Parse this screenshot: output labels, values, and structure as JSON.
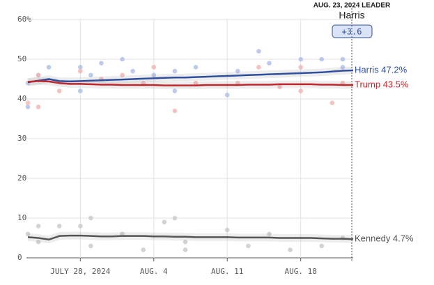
{
  "chart_data": {
    "type": "line",
    "leader": {
      "title": "AUG. 23, 2024 LEADER",
      "name": "Harris",
      "margin": "+3.6"
    },
    "x": [
      "2024-07-23",
      "2024-07-24",
      "2024-07-25",
      "2024-07-26",
      "2024-07-27",
      "2024-07-28",
      "2024-07-29",
      "2024-07-30",
      "2024-07-31",
      "2024-08-01",
      "2024-08-02",
      "2024-08-03",
      "2024-08-04",
      "2024-08-05",
      "2024-08-06",
      "2024-08-07",
      "2024-08-08",
      "2024-08-09",
      "2024-08-10",
      "2024-08-11",
      "2024-08-12",
      "2024-08-13",
      "2024-08-14",
      "2024-08-15",
      "2024-08-16",
      "2024-08-17",
      "2024-08-18",
      "2024-08-19",
      "2024-08-20",
      "2024-08-21",
      "2024-08-22",
      "2024-08-23"
    ],
    "xlim": [
      "2024-07-23",
      "2024-08-23"
    ],
    "xticks": [
      {
        "value": "2024-07-28",
        "label": "JULY 28, 2024"
      },
      {
        "value": "2024-08-04",
        "label": "AUG. 4"
      },
      {
        "value": "2024-08-11",
        "label": "AUG. 11"
      },
      {
        "value": "2024-08-18",
        "label": "AUG. 18"
      }
    ],
    "ylim": [
      0,
      60
    ],
    "yticks": [
      0,
      10,
      20,
      30,
      40,
      50,
      {
        "value": 60,
        "label": "60%"
      }
    ],
    "grid": true,
    "series": [
      {
        "name": "Harris",
        "end_label": "Harris 47.2%",
        "color": "#2f4f9e",
        "dot_color": "#aebde8",
        "values": [
          44.2,
          44.6,
          45.0,
          44.5,
          44.4,
          44.5,
          44.6,
          44.7,
          44.8,
          44.9,
          45.0,
          45.1,
          45.2,
          45.3,
          45.4,
          45.4,
          45.5,
          45.6,
          45.7,
          45.8,
          45.9,
          46.0,
          46.1,
          46.2,
          46.3,
          46.4,
          46.5,
          46.6,
          46.7,
          46.9,
          47.1,
          47.2
        ],
        "polls": {
          "x": [
            "2024-07-23",
            "2024-07-23",
            "2024-07-24",
            "2024-07-25",
            "2024-07-28",
            "2024-07-28",
            "2024-07-29",
            "2024-07-30",
            "2024-08-01",
            "2024-08-02",
            "2024-08-04",
            "2024-08-06",
            "2024-08-06",
            "2024-08-08",
            "2024-08-11",
            "2024-08-12",
            "2024-08-14",
            "2024-08-15",
            "2024-08-18",
            "2024-08-20",
            "2024-08-22",
            "2024-08-22"
          ],
          "values": [
            38,
            44,
            46,
            48,
            48,
            42,
            46,
            49,
            50,
            47,
            46,
            47,
            42,
            48,
            41,
            47,
            52,
            49,
            50,
            50,
            50,
            48
          ]
        }
      },
      {
        "name": "Trump",
        "end_label": "Trump 43.5%",
        "color": "#c0262d",
        "dot_color": "#f2b3b0",
        "values": [
          44.3,
          44.5,
          44.4,
          44.0,
          43.8,
          43.8,
          43.7,
          43.6,
          43.6,
          43.5,
          43.5,
          43.5,
          43.5,
          43.4,
          43.4,
          43.4,
          43.4,
          43.5,
          43.5,
          43.5,
          43.5,
          43.6,
          43.6,
          43.6,
          43.7,
          43.7,
          43.7,
          43.7,
          43.6,
          43.6,
          43.5,
          43.5
        ],
        "polls": {
          "x": [
            "2024-07-23",
            "2024-07-24",
            "2024-07-24",
            "2024-07-26",
            "2024-07-28",
            "2024-07-30",
            "2024-08-01",
            "2024-08-03",
            "2024-08-04",
            "2024-08-06",
            "2024-08-08",
            "2024-08-12",
            "2024-08-14",
            "2024-08-16",
            "2024-08-18",
            "2024-08-18",
            "2024-08-21",
            "2024-08-22"
          ],
          "values": [
            39,
            38,
            46,
            42,
            47,
            45,
            46,
            44,
            48,
            37,
            44,
            44,
            48,
            43,
            42,
            48,
            39,
            44
          ]
        }
      },
      {
        "name": "Kennedy",
        "end_label": "Kennedy 4.7%",
        "color": "#555555",
        "dot_color": "#c8c8c8",
        "values": [
          5.2,
          5.0,
          4.6,
          5.5,
          5.6,
          5.6,
          5.5,
          5.4,
          5.4,
          5.5,
          5.5,
          5.5,
          5.4,
          5.4,
          5.3,
          5.3,
          5.2,
          5.2,
          5.2,
          5.2,
          5.1,
          5.1,
          5.1,
          5.1,
          5.0,
          5.0,
          5.0,
          5.0,
          4.9,
          4.8,
          4.8,
          4.7
        ],
        "polls": {
          "x": [
            "2024-07-23",
            "2024-07-24",
            "2024-07-24",
            "2024-07-26",
            "2024-07-28",
            "2024-07-29",
            "2024-07-29",
            "2024-08-01",
            "2024-08-03",
            "2024-08-05",
            "2024-08-06",
            "2024-08-07",
            "2024-08-07",
            "2024-08-11",
            "2024-08-13",
            "2024-08-15",
            "2024-08-17",
            "2024-08-20",
            "2024-08-22"
          ],
          "values": [
            6,
            4,
            8,
            8,
            8,
            10,
            3,
            6,
            2,
            9,
            10,
            4,
            2,
            7,
            3,
            6,
            2,
            3,
            5
          ]
        }
      }
    ]
  }
}
